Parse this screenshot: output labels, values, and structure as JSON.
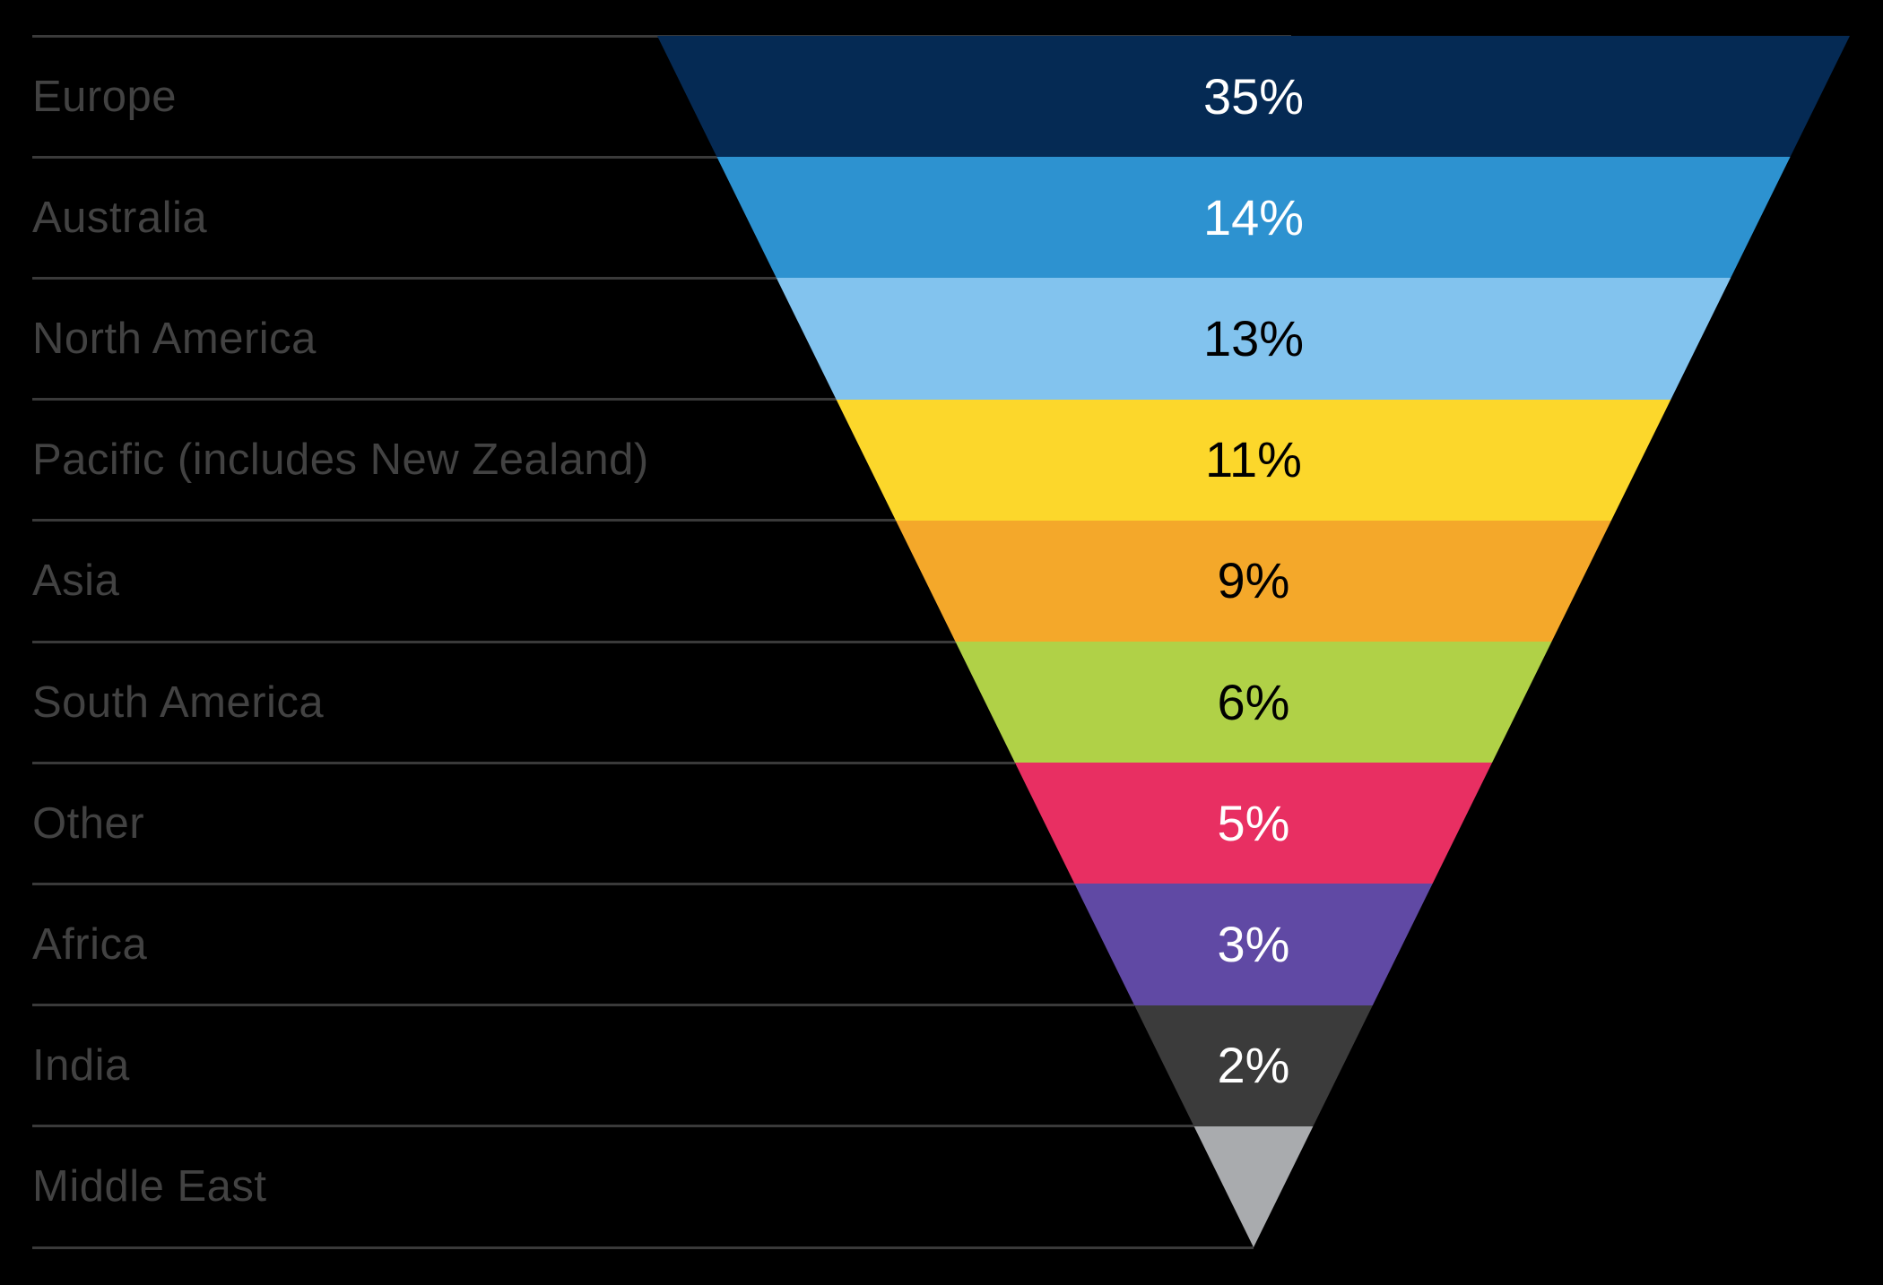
{
  "background": "#000000",
  "label_color": "#424242",
  "divider_color": "#3a3a3a",
  "chart_data": {
    "type": "funnel",
    "title": "",
    "orientation": "inverted-pyramid",
    "legend_position": "left-label-column",
    "grid": "row-divider-lines",
    "categories": [
      "Europe",
      "Australia",
      "North America",
      "Pacific (includes New Zealand)",
      "Asia",
      "South America",
      "Other",
      "Africa",
      "India",
      "Middle East"
    ],
    "values": [
      35,
      14,
      13,
      11,
      9,
      6,
      5,
      3,
      2,
      null
    ],
    "segments": [
      {
        "label": "Europe",
        "percent_label": "35%",
        "color": "#052a54",
        "text_color": "#ffffff"
      },
      {
        "label": "Australia",
        "percent_label": "14%",
        "color": "#2d92d0",
        "text_color": "#ffffff"
      },
      {
        "label": "North America",
        "percent_label": "13%",
        "color": "#82c3ee",
        "text_color": "#000000"
      },
      {
        "label": "Pacific (includes New Zealand)",
        "percent_label": "11%",
        "color": "#fcd72b",
        "text_color": "#000000"
      },
      {
        "label": "Asia",
        "percent_label": "9%",
        "color": "#f4a82a",
        "text_color": "#000000"
      },
      {
        "label": "South America",
        "percent_label": "6%",
        "color": "#b0d147",
        "text_color": "#000000"
      },
      {
        "label": "Other",
        "percent_label": "5%",
        "color": "#e82f62",
        "text_color": "#ffffff"
      },
      {
        "label": "Africa",
        "percent_label": "3%",
        "color": "#6049a4",
        "text_color": "#ffffff"
      },
      {
        "label": "India",
        "percent_label": "2%",
        "color": "#3b3b3b",
        "text_color": "#ffffff"
      },
      {
        "label": "Middle East",
        "percent_label": "",
        "color": "#a9abae",
        "text_color": "#000000"
      }
    ]
  }
}
